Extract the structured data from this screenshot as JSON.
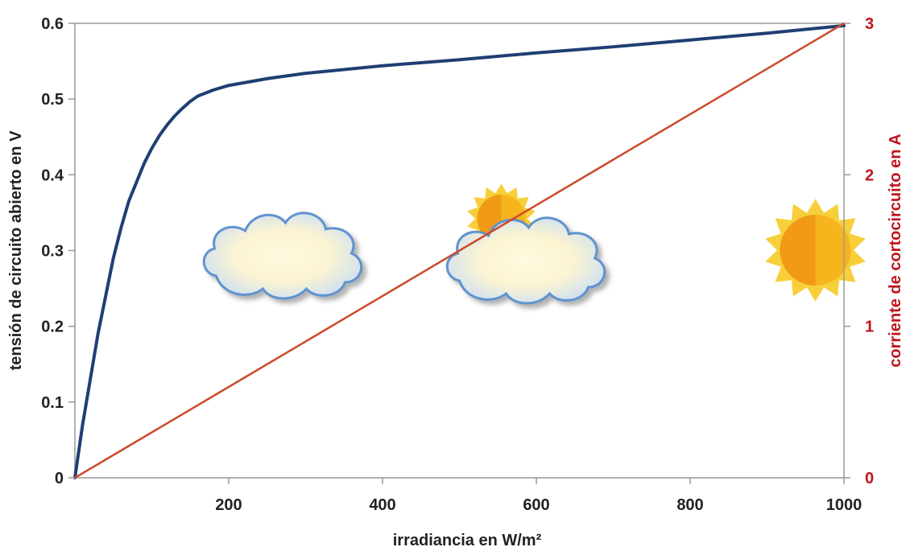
{
  "chart_data": {
    "type": "line",
    "xlabel": "irradiancia en W/m²",
    "ylabel_left": "tensión de circuito abierto en V",
    "ylabel_right": "corriente de cortocircuito en A",
    "xlim": [
      0,
      1000
    ],
    "ylim_left": [
      0,
      0.6
    ],
    "ylim_right": [
      0,
      3
    ],
    "x_ticks": [
      "200",
      "400",
      "600",
      "800",
      "1000"
    ],
    "y_left_ticks": [
      "0",
      "0.1",
      "0.2",
      "0.3",
      "0.4",
      "0.5",
      "0.6"
    ],
    "y_right_ticks": [
      "0",
      "1",
      "2",
      "3"
    ],
    "grid": false,
    "series": [
      {
        "axis": "left",
        "color": "#1f3f73",
        "x": [
          0,
          5,
          10,
          20,
          30,
          40,
          50,
          60,
          70,
          80,
          90,
          100,
          110,
          120,
          130,
          140,
          150,
          160,
          170,
          180,
          200,
          250,
          300,
          400,
          500,
          600,
          700,
          800,
          900,
          1000
        ],
        "y": [
          0,
          0.035,
          0.07,
          0.13,
          0.19,
          0.24,
          0.29,
          0.33,
          0.365,
          0.39,
          0.415,
          0.435,
          0.452,
          0.466,
          0.478,
          0.488,
          0.497,
          0.504,
          0.508,
          0.512,
          0.518,
          0.527,
          0.534,
          0.544,
          0.552,
          0.561,
          0.569,
          0.578,
          0.587,
          0.597
        ]
      },
      {
        "axis": "right",
        "color": "#cc4a2c",
        "x": [
          0,
          1000
        ],
        "y": [
          0,
          3
        ]
      }
    ],
    "icons": [
      {
        "name": "cloud-icon",
        "x": 190
      },
      {
        "name": "sun-behind-cloud-icon",
        "x": 500
      },
      {
        "name": "sun-icon",
        "x": 900
      }
    ]
  }
}
